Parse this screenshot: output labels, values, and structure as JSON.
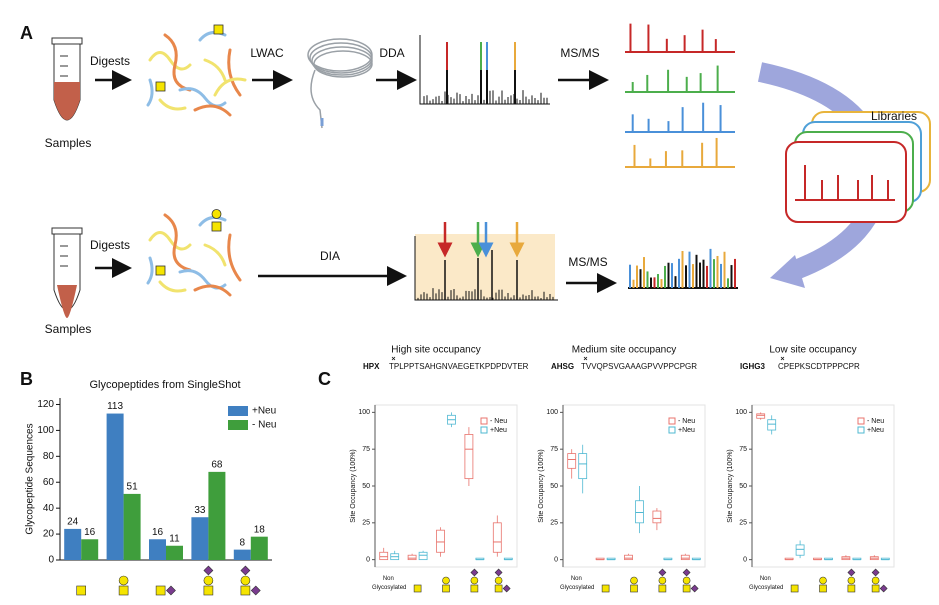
{
  "panel_labels": [
    "A",
    "B",
    "C"
  ],
  "workflow": {
    "dda_row": [
      "Samples",
      "Digests",
      "LWAC",
      "DDA",
      "MS/MS"
    ],
    "libraries": "Libraries",
    "dia_row": [
      "Samples",
      "Digests",
      "DIA",
      "MS/MS"
    ]
  },
  "chart_data": [
    {
      "type": "bar",
      "title": "Glycopeptides from SingleShot",
      "y_label": "Glycopeptide Sequences",
      "categories": [
        null,
        null,
        null,
        null,
        null
      ],
      "series": [
        {
          "name": "+Neu",
          "color": "#3f7fc1",
          "values": [
            24,
            113,
            16,
            33,
            8
          ]
        },
        {
          "name": "- Neu",
          "color": "#3f9e3c",
          "values": [
            16,
            51,
            11,
            68,
            18
          ]
        }
      ],
      "ylim": [
        0,
        125
      ],
      "yticks": [
        0,
        20,
        40,
        60,
        80,
        100,
        120
      ],
      "legend": "top-right"
    },
    {
      "type": "box",
      "title": "High site occupancy",
      "protein": "HPX",
      "sequence": "TPLPPTSAHGNVAEGETKPDPDVTER",
      "y_label": "Site Occupancy (100%)",
      "categories": [
        "Non Glycosylated",
        null,
        null,
        null,
        null
      ],
      "series": [
        {
          "name": "- Neu",
          "color": "#e8736c",
          "values": [
            [
              0,
              0,
              2,
              5,
              8
            ],
            [
              0,
              0,
              1,
              3,
              4
            ],
            [
              2,
              5,
              12,
              20,
              22
            ],
            [
              50,
              55,
              75,
              85,
              90
            ],
            [
              2,
              5,
              12,
              25,
              30
            ]
          ]
        },
        {
          "name": "+Neu",
          "color": "#4fb8d2",
          "values": [
            [
              0,
              0,
              2,
              4,
              6
            ],
            [
              0,
              0,
              3,
              5,
              6
            ],
            [
              90,
              92,
              95,
              98,
              100
            ],
            [
              0,
              0,
              0,
              1,
              1
            ],
            [
              0,
              0,
              0,
              1,
              1
            ]
          ]
        }
      ],
      "ylim": [
        -5,
        105
      ],
      "yticks": [
        0,
        25,
        50,
        75,
        100
      ],
      "legend": "top-right"
    },
    {
      "type": "box",
      "title": "Medium site occupancy",
      "protein": "AHSG",
      "sequence": "TVVQPSVGAAAGPVVPPCPGR",
      "y_label": "Site Occupancy (100%)",
      "categories": [
        "Non Glycosylated",
        null,
        null,
        null,
        null
      ],
      "series": [
        {
          "name": "- Neu",
          "color": "#e8736c",
          "values": [
            [
              55,
              62,
              68,
              72,
              75
            ],
            [
              0,
              0,
              0,
              1,
              1
            ],
            [
              0,
              0,
              1,
              3,
              4
            ],
            [
              20,
              25,
              28,
              33,
              35
            ],
            [
              0,
              0,
              1,
              3,
              4
            ]
          ]
        },
        {
          "name": "+Neu",
          "color": "#4fb8d2",
          "values": [
            [
              45,
              55,
              65,
              72,
              78
            ],
            [
              0,
              0,
              0,
              1,
              1
            ],
            [
              18,
              25,
              32,
              40,
              50
            ],
            [
              0,
              0,
              0,
              1,
              1
            ],
            [
              0,
              0,
              0,
              1,
              1
            ]
          ]
        }
      ],
      "ylim": [
        -5,
        105
      ],
      "yticks": [
        0,
        25,
        50,
        75,
        100
      ],
      "legend": "top-right"
    },
    {
      "type": "box",
      "title": "Low site occupancy",
      "protein": "IGHG3",
      "sequence": "CPEPKSCDTPPPCPR",
      "y_label": "Site Occupancy (100%)",
      "categories": [
        "Non Glycosylated",
        null,
        null,
        null,
        null
      ],
      "series": [
        {
          "name": "- Neu",
          "color": "#e8736c",
          "values": [
            [
              95,
              96,
              98,
              99,
              100
            ],
            [
              0,
              0,
              0,
              1,
              1
            ],
            [
              0,
              0,
              0,
              1,
              1
            ],
            [
              0,
              0,
              1,
              2,
              3
            ],
            [
              0,
              0,
              1,
              2,
              3
            ]
          ]
        },
        {
          "name": "+Neu",
          "color": "#4fb8d2",
          "values": [
            [
              85,
              88,
              92,
              95,
              98
            ],
            [
              1,
              3,
              7,
              10,
              13
            ],
            [
              0,
              0,
              0,
              1,
              1
            ],
            [
              0,
              0,
              0,
              1,
              1
            ],
            [
              0,
              0,
              0,
              1,
              1
            ]
          ]
        }
      ],
      "ylim": [
        -5,
        105
      ],
      "yticks": [
        0,
        25,
        50,
        75,
        100
      ],
      "legend": "top-right"
    }
  ]
}
